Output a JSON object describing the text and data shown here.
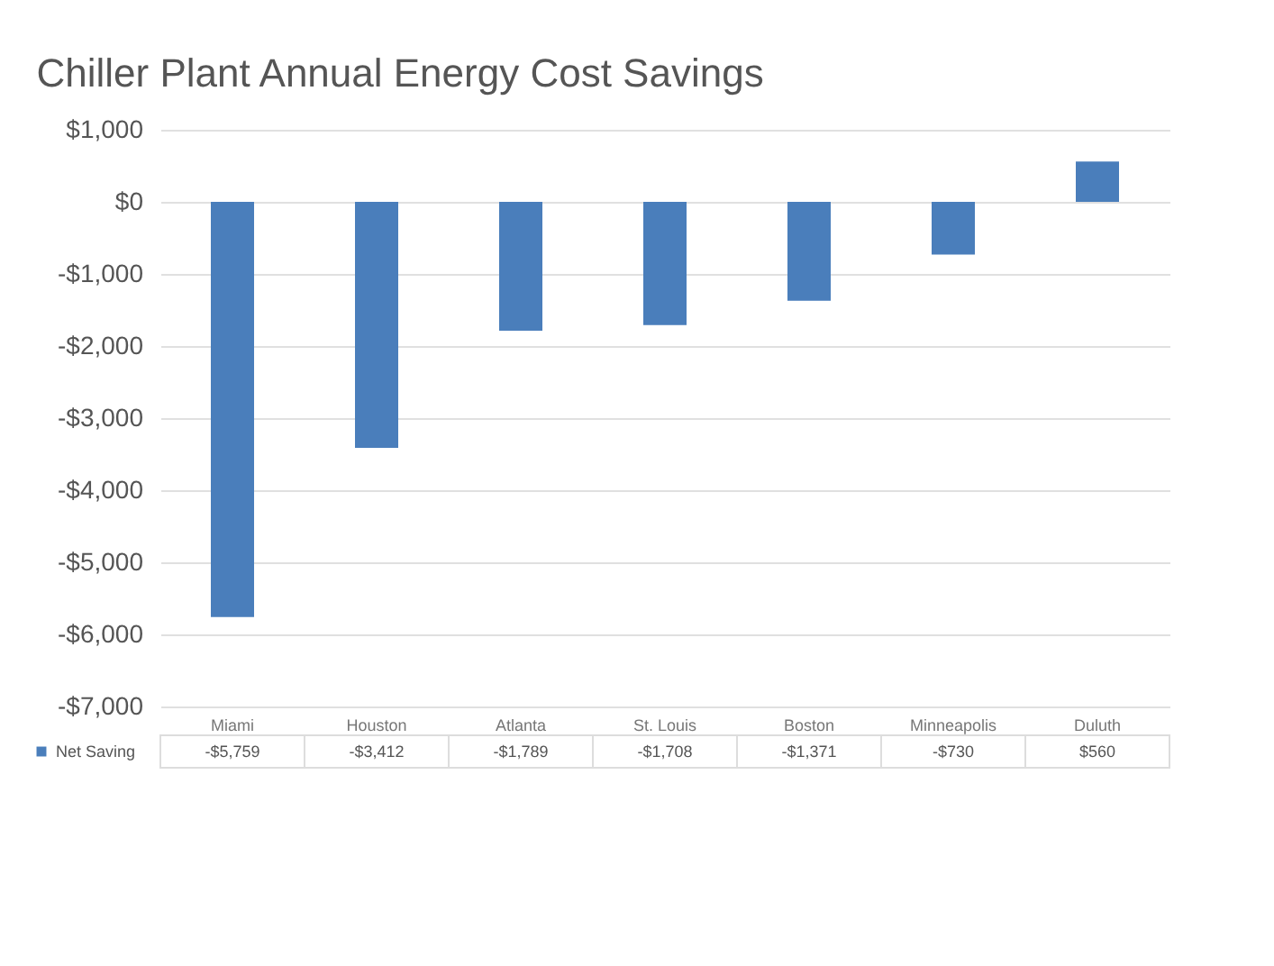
{
  "chart_data": {
    "type": "bar",
    "title": "Chiller Plant Annual Energy Cost Savings",
    "categories": [
      "Miami",
      "Houston",
      "Atlanta",
      "St. Louis",
      "Boston",
      "Minneapolis",
      "Duluth"
    ],
    "series": [
      {
        "name": "Net Saving",
        "color": "#4a7ebb",
        "values": [
          -5759,
          -3412,
          -1789,
          -1708,
          -1371,
          -730,
          560
        ],
        "value_labels": [
          "-$5,759",
          "-$3,412",
          "-$1,789",
          "-$1,708",
          "-$1,371",
          "-$730",
          "$560"
        ]
      }
    ],
    "ylim": [
      -7000,
      1000
    ],
    "yticks": [
      {
        "value": 1000,
        "label": "$1,000"
      },
      {
        "value": 0,
        "label": "$0"
      },
      {
        "value": -1000,
        "label": "-$1,000"
      },
      {
        "value": -2000,
        "label": "-$2,000"
      },
      {
        "value": -3000,
        "label": "-$3,000"
      },
      {
        "value": -4000,
        "label": "-$4,000"
      },
      {
        "value": -5000,
        "label": "-$5,000"
      },
      {
        "value": -6000,
        "label": "-$6,000"
      },
      {
        "value": -7000,
        "label": "-$7,000"
      }
    ],
    "grid": "y",
    "legend": "bottom"
  }
}
